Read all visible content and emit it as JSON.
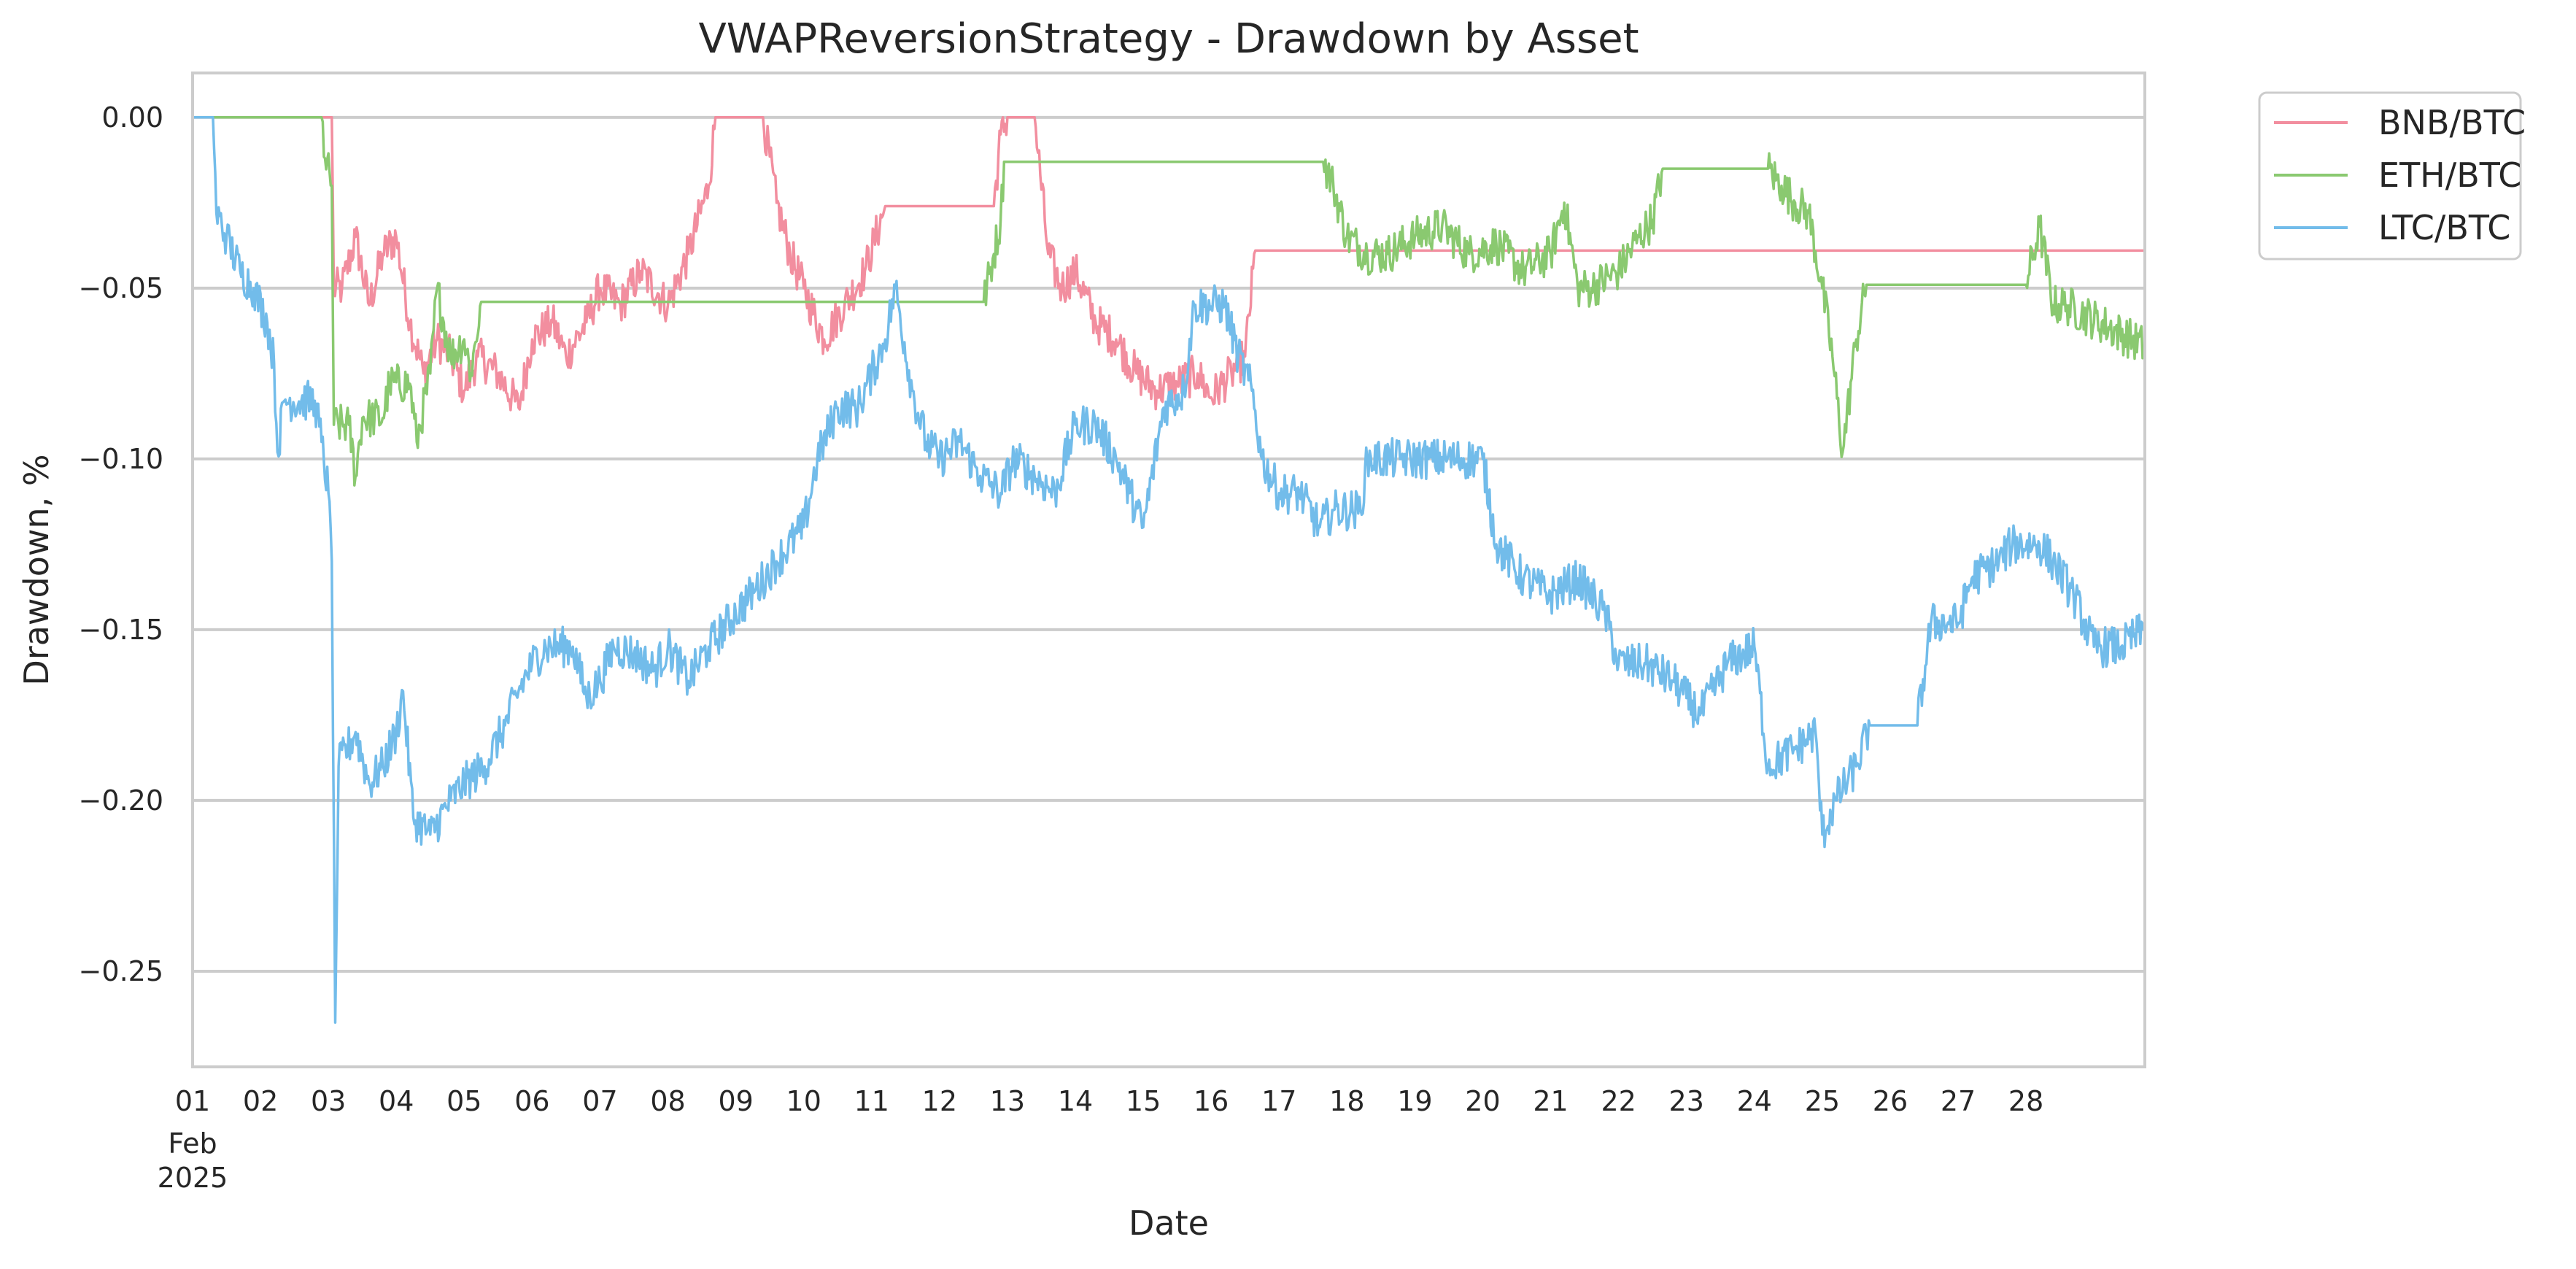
{
  "chart_data": {
    "type": "line",
    "title": "VWAPReversionStrategy - Drawdown by Asset",
    "xlabel": "Date",
    "ylabel": "Drawdown, %",
    "xlim": [
      1,
      29.75
    ],
    "ylim": [
      -0.278,
      0.013
    ],
    "grid": "horizontal",
    "legend_position": "outside-top-right",
    "x_ticks": [
      {
        "x": 1,
        "label": "01"
      },
      {
        "x": 2,
        "label": "02"
      },
      {
        "x": 3,
        "label": "03"
      },
      {
        "x": 4,
        "label": "04"
      },
      {
        "x": 5,
        "label": "05"
      },
      {
        "x": 6,
        "label": "06"
      },
      {
        "x": 7,
        "label": "07"
      },
      {
        "x": 8,
        "label": "08"
      },
      {
        "x": 9,
        "label": "09"
      },
      {
        "x": 10,
        "label": "10"
      },
      {
        "x": 11,
        "label": "11"
      },
      {
        "x": 12,
        "label": "12"
      },
      {
        "x": 13,
        "label": "13"
      },
      {
        "x": 14,
        "label": "14"
      },
      {
        "x": 15,
        "label": "15"
      },
      {
        "x": 16,
        "label": "16"
      },
      {
        "x": 17,
        "label": "17"
      },
      {
        "x": 18,
        "label": "18"
      },
      {
        "x": 19,
        "label": "19"
      },
      {
        "x": 20,
        "label": "20"
      },
      {
        "x": 21,
        "label": "21"
      },
      {
        "x": 22,
        "label": "22"
      },
      {
        "x": 23,
        "label": "23"
      },
      {
        "x": 24,
        "label": "24"
      },
      {
        "x": 25,
        "label": "25"
      },
      {
        "x": 26,
        "label": "26"
      },
      {
        "x": 27,
        "label": "27"
      },
      {
        "x": 28,
        "label": "28"
      }
    ],
    "x_month_label": "Feb",
    "x_year_label": "2025",
    "y_ticks": [
      {
        "y": 0.0,
        "label": "0.00"
      },
      {
        "y": -0.05,
        "label": "−0.05"
      },
      {
        "y": -0.1,
        "label": "−0.10"
      },
      {
        "y": -0.15,
        "label": "−0.15"
      },
      {
        "y": -0.2,
        "label": "−0.20"
      },
      {
        "y": -0.25,
        "label": "−0.25"
      }
    ],
    "series": [
      {
        "name": "BNB/BTC",
        "color": "#f28e9f",
        "points": [
          [
            1.0,
            0.0
          ],
          [
            3.0,
            0.0
          ],
          [
            3.05,
            0.0
          ],
          [
            3.08,
            -0.05
          ],
          [
            3.2,
            -0.05
          ],
          [
            3.4,
            -0.035
          ],
          [
            3.6,
            -0.055
          ],
          [
            3.8,
            -0.04
          ],
          [
            4.0,
            -0.035
          ],
          [
            4.2,
            -0.06
          ],
          [
            4.4,
            -0.075
          ],
          [
            4.6,
            -0.065
          ],
          [
            4.8,
            -0.07
          ],
          [
            5.0,
            -0.08
          ],
          [
            5.2,
            -0.07
          ],
          [
            5.5,
            -0.075
          ],
          [
            5.8,
            -0.085
          ],
          [
            6.0,
            -0.065
          ],
          [
            6.3,
            -0.06
          ],
          [
            6.5,
            -0.07
          ],
          [
            6.8,
            -0.06
          ],
          [
            7.0,
            -0.05
          ],
          [
            7.3,
            -0.055
          ],
          [
            7.6,
            -0.045
          ],
          [
            8.0,
            -0.055
          ],
          [
            8.3,
            -0.04
          ],
          [
            8.6,
            -0.02
          ],
          [
            8.7,
            0.0
          ],
          [
            9.4,
            0.0
          ],
          [
            9.6,
            -0.025
          ],
          [
            9.8,
            -0.04
          ],
          [
            10.0,
            -0.05
          ],
          [
            10.3,
            -0.065
          ],
          [
            10.6,
            -0.055
          ],
          [
            10.9,
            -0.045
          ],
          [
            11.2,
            -0.026
          ],
          [
            12.8,
            -0.026
          ],
          [
            12.9,
            -0.005
          ],
          [
            13.0,
            0.0
          ],
          [
            13.4,
            0.0
          ],
          [
            13.6,
            -0.04
          ],
          [
            13.8,
            -0.05
          ],
          [
            14.0,
            -0.045
          ],
          [
            14.3,
            -0.06
          ],
          [
            14.6,
            -0.065
          ],
          [
            14.9,
            -0.075
          ],
          [
            15.2,
            -0.08
          ],
          [
            15.5,
            -0.078
          ],
          [
            15.8,
            -0.075
          ],
          [
            16.0,
            -0.082
          ],
          [
            16.3,
            -0.075
          ],
          [
            16.5,
            -0.07
          ],
          [
            16.65,
            -0.039
          ],
          [
            29.75,
            -0.039
          ]
        ]
      },
      {
        "name": "ETH/BTC",
        "color": "#8ac970",
        "points": [
          [
            1.0,
            0.0
          ],
          [
            2.9,
            0.0
          ],
          [
            2.95,
            -0.012
          ],
          [
            3.05,
            -0.02
          ],
          [
            3.08,
            -0.09
          ],
          [
            3.3,
            -0.09
          ],
          [
            3.4,
            -0.105
          ],
          [
            3.5,
            -0.088
          ],
          [
            3.8,
            -0.088
          ],
          [
            3.9,
            -0.078
          ],
          [
            4.2,
            -0.078
          ],
          [
            4.3,
            -0.095
          ],
          [
            4.5,
            -0.075
          ],
          [
            4.6,
            -0.05
          ],
          [
            4.8,
            -0.07
          ],
          [
            5.0,
            -0.065
          ],
          [
            5.1,
            -0.075
          ],
          [
            5.25,
            -0.054
          ],
          [
            12.65,
            -0.054
          ],
          [
            12.8,
            -0.04
          ],
          [
            12.9,
            -0.03
          ],
          [
            12.95,
            -0.013
          ],
          [
            17.65,
            -0.013
          ],
          [
            17.8,
            -0.02
          ],
          [
            18.0,
            -0.035
          ],
          [
            18.3,
            -0.04
          ],
          [
            18.6,
            -0.04
          ],
          [
            19.0,
            -0.035
          ],
          [
            19.4,
            -0.032
          ],
          [
            19.8,
            -0.04
          ],
          [
            20.2,
            -0.037
          ],
          [
            20.6,
            -0.045
          ],
          [
            21.0,
            -0.04
          ],
          [
            21.2,
            -0.025
          ],
          [
            21.4,
            -0.05
          ],
          [
            21.6,
            -0.05
          ],
          [
            22.0,
            -0.045
          ],
          [
            22.3,
            -0.035
          ],
          [
            22.5,
            -0.03
          ],
          [
            22.65,
            -0.015
          ],
          [
            24.2,
            -0.015
          ],
          [
            24.4,
            -0.02
          ],
          [
            24.6,
            -0.025
          ],
          [
            24.8,
            -0.028
          ],
          [
            25.0,
            -0.05
          ],
          [
            25.15,
            -0.07
          ],
          [
            25.3,
            -0.098
          ],
          [
            25.5,
            -0.065
          ],
          [
            25.65,
            -0.049
          ],
          [
            28.0,
            -0.049
          ],
          [
            28.2,
            -0.032
          ],
          [
            28.4,
            -0.055
          ],
          [
            28.6,
            -0.055
          ],
          [
            29.75,
            -0.067
          ]
        ]
      },
      {
        "name": "LTC/BTC",
        "color": "#72bcea",
        "points": [
          [
            1.0,
            0.0
          ],
          [
            1.3,
            0.0
          ],
          [
            1.35,
            -0.028
          ],
          [
            1.5,
            -0.035
          ],
          [
            1.7,
            -0.045
          ],
          [
            1.9,
            -0.05
          ],
          [
            2.1,
            -0.06
          ],
          [
            2.2,
            -0.072
          ],
          [
            2.25,
            -0.098
          ],
          [
            2.35,
            -0.083
          ],
          [
            2.8,
            -0.083
          ],
          [
            2.9,
            -0.095
          ],
          [
            3.0,
            -0.11
          ],
          [
            3.05,
            -0.13
          ],
          [
            3.1,
            -0.265
          ],
          [
            3.15,
            -0.19
          ],
          [
            3.4,
            -0.18
          ],
          [
            3.6,
            -0.195
          ],
          [
            3.8,
            -0.19
          ],
          [
            4.0,
            -0.18
          ],
          [
            4.1,
            -0.168
          ],
          [
            4.25,
            -0.205
          ],
          [
            4.5,
            -0.21
          ],
          [
            4.8,
            -0.2
          ],
          [
            5.0,
            -0.195
          ],
          [
            5.3,
            -0.19
          ],
          [
            5.6,
            -0.178
          ],
          [
            5.8,
            -0.168
          ],
          [
            6.0,
            -0.16
          ],
          [
            6.2,
            -0.155
          ],
          [
            6.6,
            -0.155
          ],
          [
            6.8,
            -0.17
          ],
          [
            7.0,
            -0.165
          ],
          [
            7.2,
            -0.155
          ],
          [
            7.5,
            -0.157
          ],
          [
            7.8,
            -0.162
          ],
          [
            8.0,
            -0.155
          ],
          [
            8.3,
            -0.165
          ],
          [
            8.6,
            -0.155
          ],
          [
            9.0,
            -0.145
          ],
          [
            9.3,
            -0.138
          ],
          [
            9.6,
            -0.13
          ],
          [
            10.0,
            -0.12
          ],
          [
            10.2,
            -0.1
          ],
          [
            10.5,
            -0.085
          ],
          [
            10.8,
            -0.085
          ],
          [
            11.0,
            -0.075
          ],
          [
            11.2,
            -0.065
          ],
          [
            11.35,
            -0.05
          ],
          [
            11.6,
            -0.08
          ],
          [
            11.8,
            -0.095
          ],
          [
            12.0,
            -0.1
          ],
          [
            12.3,
            -0.095
          ],
          [
            12.6,
            -0.105
          ],
          [
            12.9,
            -0.11
          ],
          [
            13.1,
            -0.1
          ],
          [
            13.4,
            -0.105
          ],
          [
            13.7,
            -0.11
          ],
          [
            14.0,
            -0.09
          ],
          [
            14.3,
            -0.09
          ],
          [
            14.6,
            -0.1
          ],
          [
            14.8,
            -0.11
          ],
          [
            15.0,
            -0.12
          ],
          [
            15.3,
            -0.085
          ],
          [
            15.6,
            -0.08
          ],
          [
            15.75,
            -0.055
          ],
          [
            16.2,
            -0.055
          ],
          [
            16.4,
            -0.07
          ],
          [
            16.6,
            -0.08
          ],
          [
            16.75,
            -0.1
          ],
          [
            17.0,
            -0.11
          ],
          [
            17.3,
            -0.11
          ],
          [
            17.6,
            -0.12
          ],
          [
            17.8,
            -0.115
          ],
          [
            18.2,
            -0.115
          ],
          [
            18.3,
            -0.1
          ],
          [
            18.8,
            -0.1
          ],
          [
            19.2,
            -0.1
          ],
          [
            19.6,
            -0.1
          ],
          [
            20.0,
            -0.1
          ],
          [
            20.2,
            -0.125
          ],
          [
            20.6,
            -0.135
          ],
          [
            21.0,
            -0.14
          ],
          [
            21.4,
            -0.135
          ],
          [
            21.8,
            -0.145
          ],
          [
            22.0,
            -0.16
          ],
          [
            22.4,
            -0.16
          ],
          [
            22.8,
            -0.165
          ],
          [
            23.2,
            -0.175
          ],
          [
            23.6,
            -0.16
          ],
          [
            24.0,
            -0.155
          ],
          [
            24.2,
            -0.19
          ],
          [
            24.6,
            -0.185
          ],
          [
            24.9,
            -0.18
          ],
          [
            25.0,
            -0.21
          ],
          [
            25.2,
            -0.2
          ],
          [
            25.5,
            -0.19
          ],
          [
            25.7,
            -0.178
          ],
          [
            26.4,
            -0.178
          ],
          [
            26.6,
            -0.148
          ],
          [
            27.0,
            -0.148
          ],
          [
            27.2,
            -0.135
          ],
          [
            27.6,
            -0.13
          ],
          [
            27.8,
            -0.125
          ],
          [
            28.2,
            -0.125
          ],
          [
            28.4,
            -0.13
          ],
          [
            28.7,
            -0.14
          ],
          [
            29.0,
            -0.155
          ],
          [
            29.4,
            -0.155
          ],
          [
            29.75,
            -0.15
          ]
        ]
      }
    ]
  }
}
